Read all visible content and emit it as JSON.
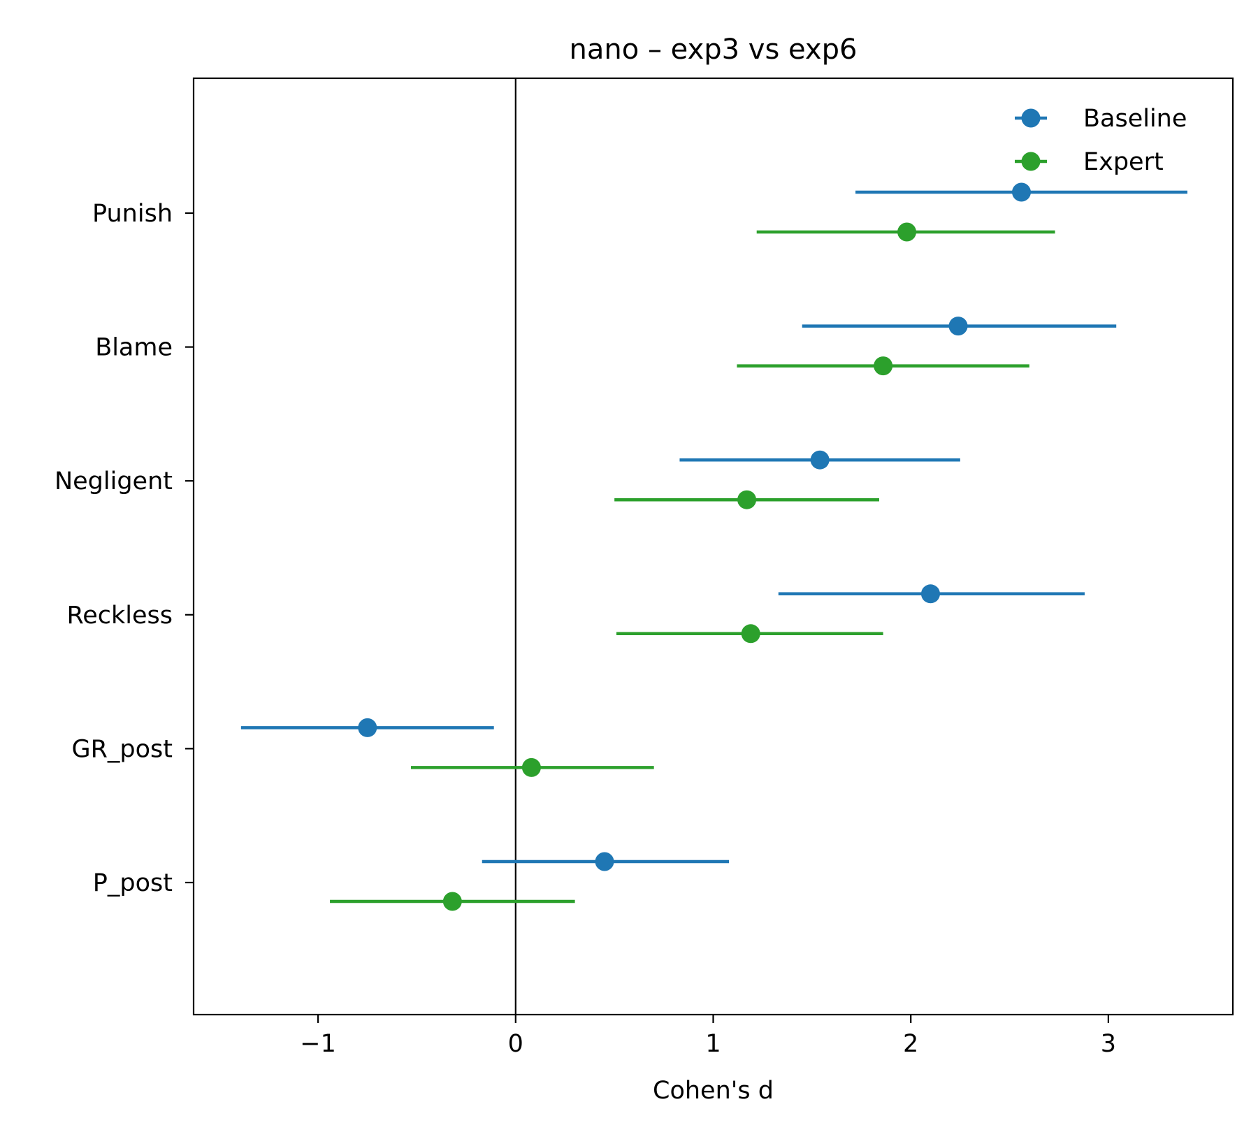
{
  "chart_data": {
    "type": "forest",
    "title": "nano  –  exp3 vs exp6",
    "xlabel": "Cohen's d",
    "ylabel": "",
    "xlim": [
      -1.63,
      3.63
    ],
    "xticks": [
      -1,
      0,
      1,
      2,
      3
    ],
    "xtick_labels": [
      "−1",
      "0",
      "1",
      "2",
      "3"
    ],
    "categories": [
      "Punish",
      "Blame",
      "Negligent",
      "Reckless",
      "GR_post",
      "P_post"
    ],
    "reference_line": 0,
    "grid": false,
    "legend": {
      "position": "top-right"
    },
    "series": [
      {
        "name": "Baseline",
        "color": "#1f77b4",
        "values": [
          2.56,
          2.24,
          1.54,
          2.1,
          -0.75,
          0.45
        ],
        "ci_low": [
          1.72,
          1.45,
          0.83,
          1.33,
          -1.39,
          -0.17
        ],
        "ci_high": [
          3.4,
          3.04,
          2.25,
          2.88,
          -0.11,
          1.08
        ]
      },
      {
        "name": "Expert",
        "color": "#2ca02c",
        "values": [
          1.98,
          1.86,
          1.17,
          1.19,
          0.08,
          -0.32
        ],
        "ci_low": [
          1.22,
          1.12,
          0.5,
          0.51,
          -0.53,
          -0.94
        ],
        "ci_high": [
          2.73,
          2.6,
          1.84,
          1.86,
          0.7,
          0.3
        ]
      }
    ]
  }
}
